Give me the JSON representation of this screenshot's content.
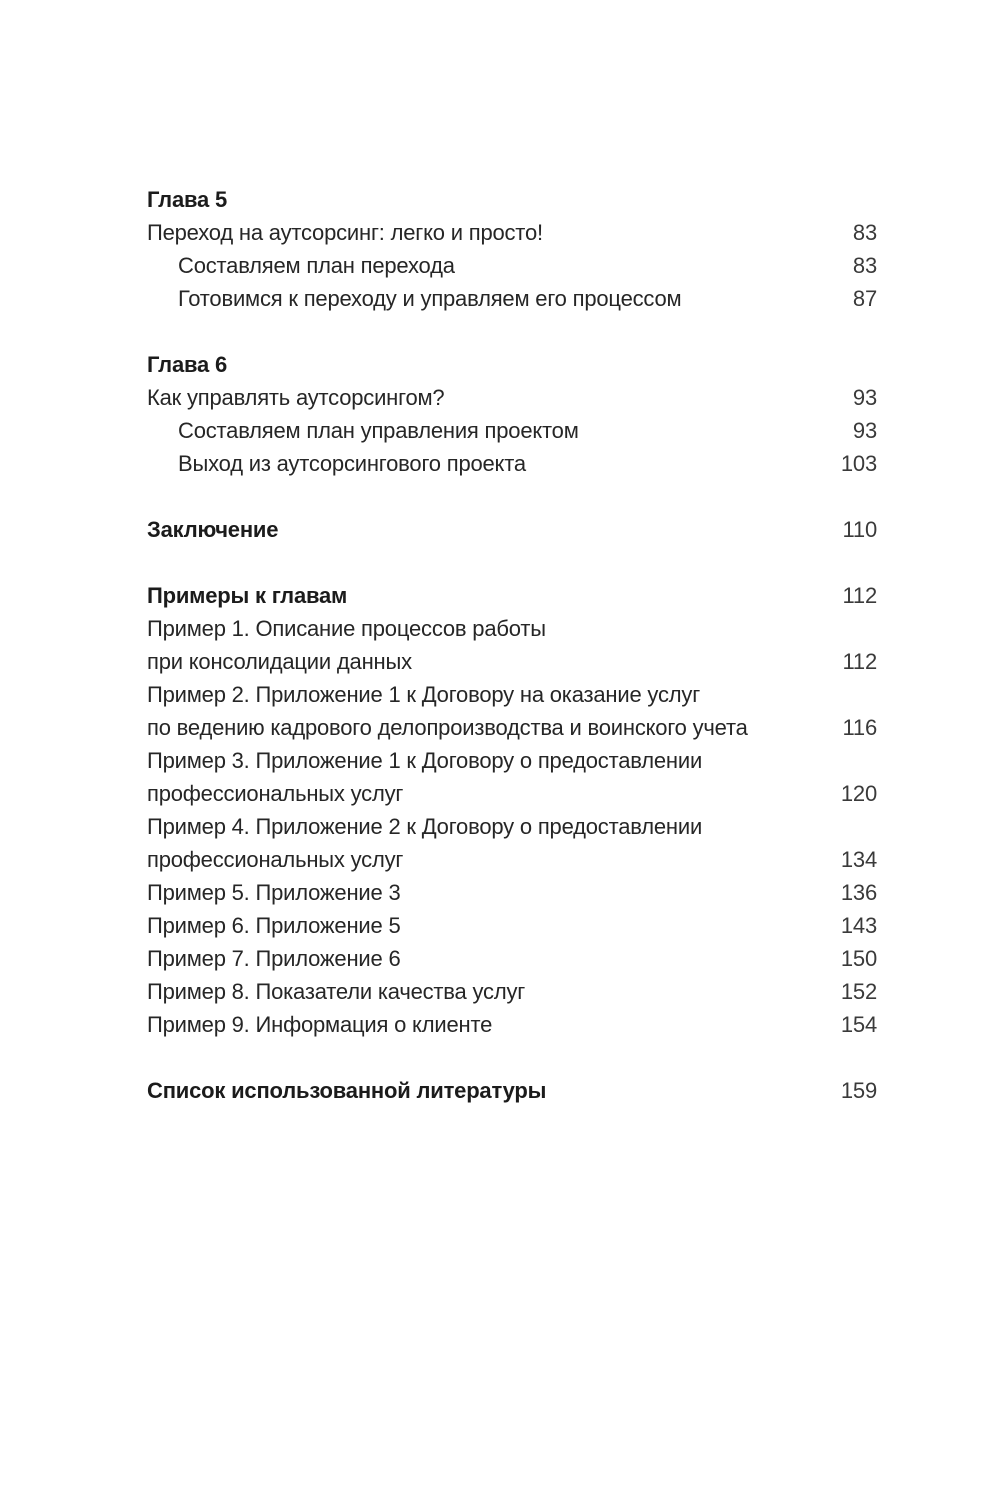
{
  "colors": {
    "page_background": "#ffffff",
    "text": "#262626",
    "page_number": "#3a3a3a"
  },
  "toc": {
    "rows": [
      {
        "text": "Глава 5",
        "page": ""
      },
      {
        "text": "Переход на аутсорсинг: легко и просто!",
        "page": "83"
      },
      {
        "text": "Составляем план перехода",
        "page": "83"
      },
      {
        "text": "Готовимся к переходу и управляем его процессом",
        "page": "87"
      },
      {
        "text": "Глава 6",
        "page": ""
      },
      {
        "text": "Как управлять аутсорсингом?",
        "page": "93"
      },
      {
        "text": "Составляем план управления проектом",
        "page": "93"
      },
      {
        "text": "Выход из аутсорсингового проекта",
        "page": "103"
      },
      {
        "text": "Заключение",
        "page": "110"
      },
      {
        "text": "Примеры к главам",
        "page": "112"
      },
      {
        "text": "Пример 1. Описание процессов работы",
        "page": ""
      },
      {
        "text": "при консолидации данных",
        "page": "112"
      },
      {
        "text": "Пример 2. Приложение 1 к Договору на оказание услуг",
        "page": ""
      },
      {
        "text": "по ведению кадрового делопроизводства и воинского учета",
        "page": "116"
      },
      {
        "text": "Пример 3. Приложение 1 к Договору о предоставлении",
        "page": ""
      },
      {
        "text": "профессиональных услуг",
        "page": "120"
      },
      {
        "text": "Пример 4. Приложение 2 к Договору о предоставлении",
        "page": ""
      },
      {
        "text": "профессиональных услуг",
        "page": "134"
      },
      {
        "text": "Пример 5. Приложение 3",
        "page": "136"
      },
      {
        "text": "Пример 6. Приложение 5",
        "page": "143"
      },
      {
        "text": "Пример 7. Приложение 6",
        "page": "150"
      },
      {
        "text": "Пример 8. Показатели качества услуг",
        "page": "152"
      },
      {
        "text": "Пример 9. Информация о клиенте",
        "page": "154"
      },
      {
        "text": "Список использованной литературы",
        "page": "159"
      }
    ]
  }
}
